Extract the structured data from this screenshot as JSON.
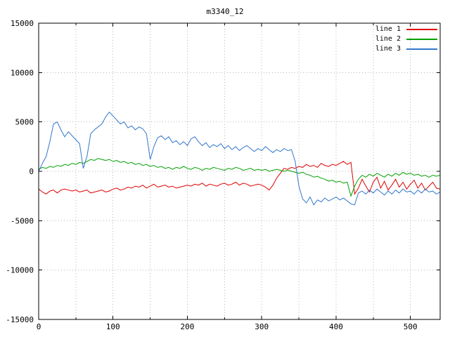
{
  "chart_data": {
    "type": "line",
    "title": "m3340_12",
    "xlabel": "",
    "ylabel": "",
    "xlim": [
      0,
      540
    ],
    "ylim": [
      -15000,
      15000
    ],
    "x_ticks": [
      0,
      100,
      200,
      300,
      400,
      500
    ],
    "y_ticks": [
      -15000,
      -10000,
      -5000,
      0,
      5000,
      10000,
      15000
    ],
    "minor_x_interval": 50,
    "grid": true,
    "legend_position": "top-right",
    "grid_color": "#b8b8b8",
    "border_color": "#000000",
    "x": [
      0,
      5,
      10,
      15,
      20,
      25,
      30,
      35,
      40,
      45,
      50,
      55,
      60,
      65,
      70,
      75,
      80,
      85,
      90,
      95,
      100,
      105,
      110,
      115,
      120,
      125,
      130,
      135,
      140,
      145,
      150,
      155,
      160,
      165,
      170,
      175,
      180,
      185,
      190,
      195,
      200,
      205,
      210,
      215,
      220,
      225,
      230,
      235,
      240,
      245,
      250,
      255,
      260,
      265,
      270,
      275,
      280,
      285,
      290,
      295,
      300,
      305,
      310,
      315,
      320,
      325,
      330,
      335,
      340,
      345,
      350,
      355,
      360,
      365,
      370,
      375,
      380,
      385,
      390,
      395,
      400,
      405,
      410,
      415,
      420,
      425,
      430,
      435,
      440,
      445,
      450,
      455,
      460,
      465,
      470,
      475,
      480,
      485,
      490,
      495,
      500,
      505,
      510,
      515,
      520,
      525,
      530,
      535,
      540
    ],
    "series": [
      {
        "name": "line 1",
        "color": "#dd0000",
        "values": [
          -1800,
          -2100,
          -2300,
          -2000,
          -1900,
          -2200,
          -1900,
          -1800,
          -1900,
          -2000,
          -1900,
          -2100,
          -2000,
          -1900,
          -2200,
          -2100,
          -2000,
          -1900,
          -2100,
          -2000,
          -1800,
          -1700,
          -1900,
          -1800,
          -1600,
          -1700,
          -1500,
          -1600,
          -1400,
          -1700,
          -1500,
          -1300,
          -1600,
          -1500,
          -1400,
          -1600,
          -1500,
          -1700,
          -1600,
          -1500,
          -1400,
          -1500,
          -1300,
          -1400,
          -1200,
          -1500,
          -1300,
          -1400,
          -1500,
          -1300,
          -1200,
          -1400,
          -1300,
          -1100,
          -1400,
          -1200,
          -1300,
          -1500,
          -1400,
          -1300,
          -1400,
          -1600,
          -1900,
          -1400,
          -700,
          -200,
          300,
          200,
          400,
          300,
          500,
          400,
          700,
          500,
          600,
          400,
          800,
          600,
          500,
          700,
          600,
          800,
          1000,
          700,
          900,
          -2300,
          -1700,
          -800,
          -1500,
          -2100,
          -1100,
          -600,
          -1700,
          -1000,
          -1900,
          -1400,
          -800,
          -1600,
          -1100,
          -1800,
          -1300,
          -900,
          -1700,
          -1200,
          -1900,
          -1500,
          -1100,
          -1700,
          -1800
        ]
      },
      {
        "name": "line 2",
        "color": "#00a000",
        "values": [
          200,
          400,
          300,
          500,
          400,
          600,
          500,
          700,
          600,
          800,
          700,
          900,
          800,
          1000,
          1200,
          1100,
          1300,
          1200,
          1100,
          1200,
          1000,
          1100,
          900,
          1000,
          800,
          900,
          700,
          800,
          600,
          700,
          500,
          600,
          400,
          500,
          300,
          400,
          200,
          400,
          300,
          500,
          300,
          200,
          400,
          300,
          100,
          300,
          200,
          400,
          300,
          200,
          100,
          300,
          200,
          400,
          300,
          100,
          200,
          300,
          100,
          200,
          100,
          200,
          0,
          100,
          200,
          100,
          0,
          100,
          0,
          -100,
          -200,
          -100,
          -300,
          -400,
          -600,
          -500,
          -700,
          -800,
          -1000,
          -900,
          -1100,
          -1000,
          -1200,
          -1100,
          -2500,
          -1500,
          -800,
          -400,
          -600,
          -300,
          -500,
          -200,
          -400,
          -600,
          -300,
          -500,
          -200,
          -400,
          -100,
          -300,
          -200,
          -400,
          -300,
          -500,
          -400,
          -600,
          -400,
          -500,
          -400
        ]
      },
      {
        "name": "line 3",
        "color": "#3377cc",
        "values": [
          0,
          800,
          1500,
          3000,
          4800,
          5000,
          4200,
          3500,
          4000,
          3600,
          3200,
          2800,
          300,
          1500,
          3800,
          4200,
          4500,
          4800,
          5500,
          6000,
          5600,
          5200,
          4800,
          5000,
          4400,
          4600,
          4200,
          4500,
          4300,
          3800,
          1200,
          2500,
          3400,
          3600,
          3200,
          3500,
          2900,
          3100,
          2700,
          3000,
          2600,
          3300,
          3500,
          3000,
          2600,
          2900,
          2400,
          2700,
          2500,
          2800,
          2300,
          2600,
          2200,
          2500,
          2100,
          2400,
          2600,
          2300,
          2000,
          2300,
          2100,
          2500,
          2200,
          1900,
          2200,
          2000,
          2300,
          2100,
          2200,
          1000,
          -1500,
          -2800,
          -3200,
          -2600,
          -3400,
          -2900,
          -3100,
          -2700,
          -3000,
          -2800,
          -2600,
          -2900,
          -2700,
          -3000,
          -3300,
          -3400,
          -2200,
          -2000,
          -2300,
          -1900,
          -2200,
          -1800,
          -2100,
          -2400,
          -2000,
          -2300,
          -1900,
          -2200,
          -1800,
          -2100,
          -2000,
          -2300,
          -1900,
          -2200,
          -1800,
          -2100,
          -2000,
          -2300,
          -2100
        ]
      }
    ]
  }
}
